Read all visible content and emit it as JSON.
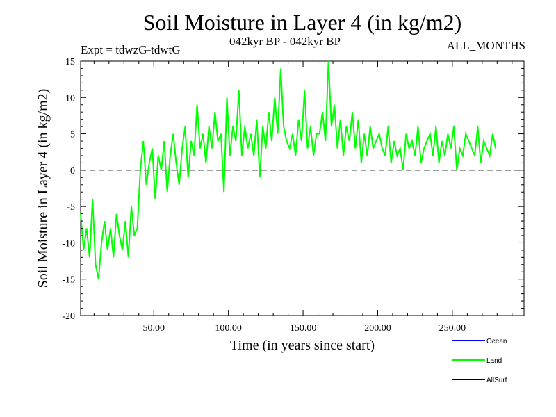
{
  "header": {
    "title": "Soil Moisture in Layer 4 (in kg/m2)",
    "subtitle": "042kyr BP - 042kyr BP",
    "expt": "Expt = tdwzG-tdwtG",
    "months": "ALL_MONTHS"
  },
  "chart_data": {
    "type": "line",
    "title": "Soil Moisture in Layer 4 (in kg/m2)",
    "xlabel": "Time (in years since start)",
    "ylabel": "Soil Moisture in Layer 4 (in kg/m2)",
    "xlim": [
      1,
      298
    ],
    "ylim": [
      -20,
      15
    ],
    "x_ticks": [
      50,
      100,
      150,
      200,
      250
    ],
    "x_tick_labels": [
      "50.00",
      "100.00",
      "150.00",
      "200.00",
      "250.00"
    ],
    "y_ticks": [
      -20,
      -15,
      -10,
      -5,
      0,
      5,
      10,
      15
    ],
    "y_tick_labels": [
      "-20",
      "-15",
      "-10",
      "-5",
      "0",
      "5",
      "10",
      "15"
    ],
    "reference_line": {
      "y": 0,
      "style": "dashed"
    },
    "legend": [
      {
        "name": "Ocean",
        "color": "#0000ff"
      },
      {
        "name": "Land",
        "color": "#00ff00"
      },
      {
        "name": "AllSurf",
        "color": "#000000"
      }
    ],
    "legend_placement": "bottom-right",
    "series": [
      {
        "name": "Land",
        "color": "#00ff00",
        "x_start": 1,
        "x_step": 2,
        "values": [
          -6,
          -11,
          -8,
          -12,
          -4,
          -13,
          -15,
          -10,
          -7,
          -11,
          -8,
          -12,
          -6,
          -9,
          -11,
          -7,
          -12,
          -5,
          -9,
          -8,
          0,
          4,
          -2,
          1,
          3,
          -4,
          2,
          0,
          4,
          -3,
          2,
          5,
          1,
          -2,
          3,
          6,
          -1,
          4,
          2,
          9,
          3,
          5,
          1,
          6,
          3,
          8,
          4,
          5,
          -3,
          10,
          2,
          6,
          4,
          11,
          2,
          6,
          3,
          5,
          2,
          7,
          -1,
          6,
          3,
          8,
          4,
          10,
          5,
          14,
          6,
          4,
          3,
          5,
          2,
          7,
          4,
          11,
          3,
          6,
          2,
          5,
          5,
          8,
          4,
          15,
          6,
          9,
          3,
          7,
          2,
          6,
          4,
          8,
          3,
          7,
          1,
          5,
          2,
          6,
          3,
          4,
          5,
          3,
          2,
          6,
          1,
          4,
          2,
          3,
          0,
          5,
          3,
          4,
          2,
          6,
          1,
          3,
          4,
          5,
          2,
          6,
          1,
          4,
          2,
          5,
          3,
          6,
          0,
          3,
          2,
          5,
          4,
          3,
          2,
          6,
          1,
          4,
          3,
          2,
          5,
          3
        ]
      }
    ]
  }
}
